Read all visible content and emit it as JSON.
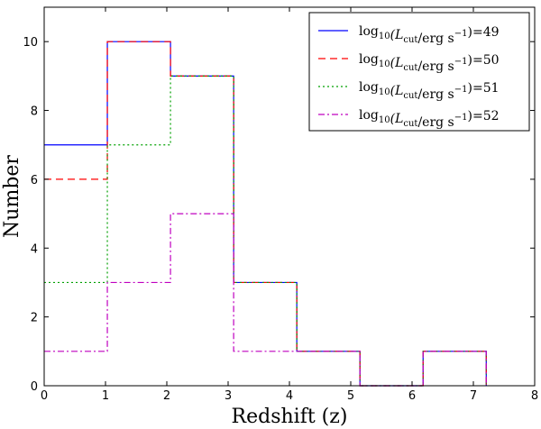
{
  "chart_data": {
    "type": "line",
    "style": "step-histogram",
    "title": "",
    "xlabel": "Redshift (z)",
    "ylabel": "Number",
    "xlim": [
      0,
      8
    ],
    "ylim": [
      0,
      11
    ],
    "xticks": [
      0,
      1,
      2,
      3,
      4,
      5,
      6,
      7,
      8
    ],
    "yticks": [
      0,
      2,
      4,
      6,
      8,
      10
    ],
    "legend_position": "top-right",
    "bin_edges": [
      0,
      1.03,
      2.06,
      3.09,
      4.12,
      5.15,
      6.18,
      7.21
    ],
    "series": [
      {
        "name": "log10(Lcut/erg s^-1)=49",
        "legend": {
          "prefix": "log",
          "base": "10",
          "open": "(L",
          "sub": "cut",
          "mid": "/erg s",
          "sup": "−1",
          "close": ")",
          "eq": "=",
          "value": "49"
        },
        "color": "#0000ff",
        "linestyle": "solid",
        "values": [
          7,
          10,
          9,
          3,
          1,
          0,
          1
        ]
      },
      {
        "name": "log10(Lcut/erg s^-1)=50",
        "legend": {
          "prefix": "log",
          "base": "10",
          "open": "(L",
          "sub": "cut",
          "mid": "/erg s",
          "sup": "−1",
          "close": ")",
          "eq": "=",
          "value": "50"
        },
        "color": "#ff0000",
        "linestyle": "dashed",
        "values": [
          6,
          10,
          9,
          3,
          1,
          0,
          1
        ]
      },
      {
        "name": "log10(Lcut/erg s^-1)=51",
        "legend": {
          "prefix": "log",
          "base": "10",
          "open": "(L",
          "sub": "cut",
          "mid": "/erg s",
          "sup": "−1",
          "close": ")",
          "eq": "=",
          "value": "51"
        },
        "color": "#00a000",
        "linestyle": "dotted",
        "values": [
          3,
          7,
          9,
          3,
          1,
          0,
          1
        ]
      },
      {
        "name": "log10(Lcut/erg s^-1)=52",
        "legend": {
          "prefix": "log",
          "base": "10",
          "open": "(L",
          "sub": "cut",
          "mid": "/erg s",
          "sup": "−1",
          "close": ")",
          "eq": "=",
          "value": "52"
        },
        "color": "#bf00bf",
        "linestyle": "dashdot",
        "values": [
          1,
          3,
          5,
          1,
          1,
          0,
          1
        ]
      }
    ]
  }
}
